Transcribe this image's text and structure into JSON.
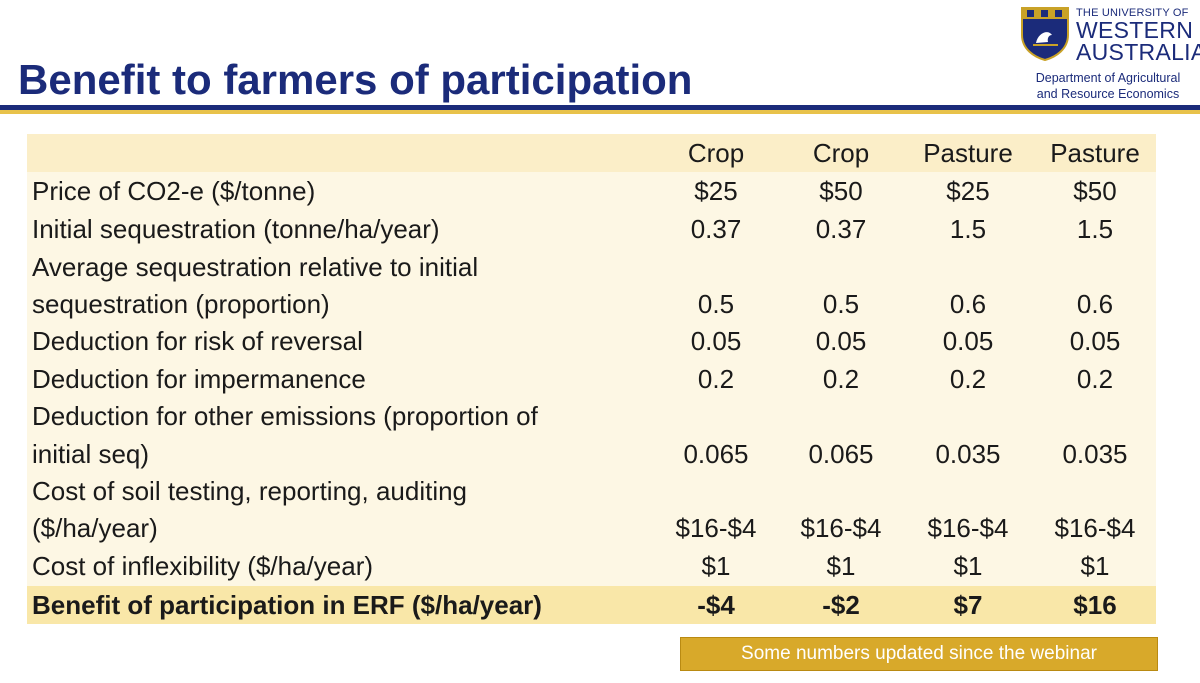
{
  "title": "Benefit to farmers of participation",
  "logo": {
    "line1": "THE UNIVERSITY OF",
    "line2": "WESTERN",
    "line3": "AUSTRALIA",
    "dept_line1": "Department of Agricultural",
    "dept_line2": "and Resource Economics"
  },
  "table": {
    "columns": [
      "Crop",
      "Crop",
      "Pasture",
      "Pasture"
    ],
    "rows": [
      {
        "label": [
          "Price of CO2-e ($/tonne)"
        ],
        "values": [
          "$25",
          "$50",
          "$25",
          "$50"
        ]
      },
      {
        "label": [
          "Initial sequestration (tonne/ha/year)"
        ],
        "values": [
          "0.37",
          "0.37",
          "1.5",
          "1.5"
        ]
      },
      {
        "label": [
          "Average sequestration relative to initial",
          "sequestration (proportion)"
        ],
        "values": [
          "0.5",
          "0.5",
          "0.6",
          "0.6"
        ]
      },
      {
        "label": [
          "Deduction for risk of reversal"
        ],
        "values": [
          "0.05",
          "0.05",
          "0.05",
          "0.05"
        ]
      },
      {
        "label": [
          "Deduction for impermanence"
        ],
        "values": [
          "0.2",
          "0.2",
          "0.2",
          "0.2"
        ]
      },
      {
        "label": [
          "Deduction for other emissions (proportion of",
          "initial seq)"
        ],
        "values": [
          "0.065",
          "0.065",
          "0.035",
          "0.035"
        ]
      },
      {
        "label": [
          "Cost of soil testing, reporting, auditing",
          "($/ha/year)"
        ],
        "values": [
          "$16-$4",
          "$16-$4",
          "$16-$4",
          "$16-$4"
        ]
      },
      {
        "label": [
          "Cost of inflexibility ($/ha/year)"
        ],
        "values": [
          "$1",
          "$1",
          "$1",
          "$1"
        ]
      }
    ],
    "total": {
      "label": "Benefit of participation in ERF ($/ha/year)",
      "values": [
        "-$4",
        "-$2",
        "$7",
        "$16"
      ]
    }
  },
  "note": "Some numbers updated since the webinar",
  "colors": {
    "title": "#1b2b7a",
    "accent_yellow": "#e8c24a",
    "table_bg": "#fdf7e4",
    "note_bg": "#d8a92a"
  }
}
